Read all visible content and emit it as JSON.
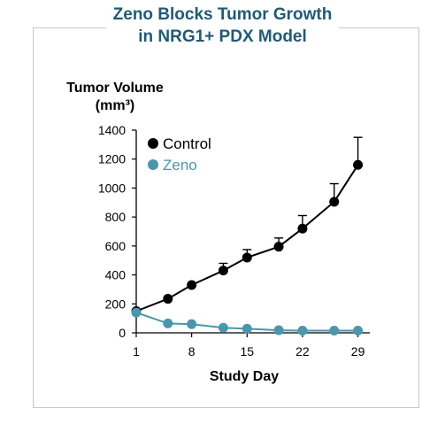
{
  "chart_data": {
    "type": "line",
    "title_line1": "Zeno Blocks Tumor Growth",
    "title_line2": "in NRG1+ PDX Model",
    "ylabel_line1": "Tumor Volume",
    "ylabel_line2": "(mm³)",
    "xlabel": "Study Day",
    "xlim": [
      1,
      30.5
    ],
    "ylim": [
      0,
      1400
    ],
    "x_ticks": [
      1,
      8,
      15,
      22,
      29
    ],
    "y_ticks": [
      0,
      200,
      400,
      600,
      800,
      1000,
      1200,
      1400
    ],
    "legend_position": "top-left",
    "series": [
      {
        "name": "Control",
        "color": "#000000",
        "x": [
          1,
          5,
          8,
          12,
          15,
          19,
          22,
          26,
          29
        ],
        "y": [
          150,
          235,
          330,
          430,
          520,
          595,
          720,
          905,
          1160
        ],
        "err": [
          0,
          0,
          0,
          50,
          55,
          60,
          90,
          125,
          190
        ]
      },
      {
        "name": "Zeno",
        "color": "#4a96ad",
        "x": [
          1,
          5,
          8,
          12,
          15,
          19,
          22,
          26,
          29
        ],
        "y": [
          140,
          65,
          60,
          35,
          28,
          18,
          15,
          15,
          15
        ],
        "err": [
          0,
          0,
          0,
          0,
          0,
          0,
          0,
          0,
          0
        ]
      }
    ]
  }
}
